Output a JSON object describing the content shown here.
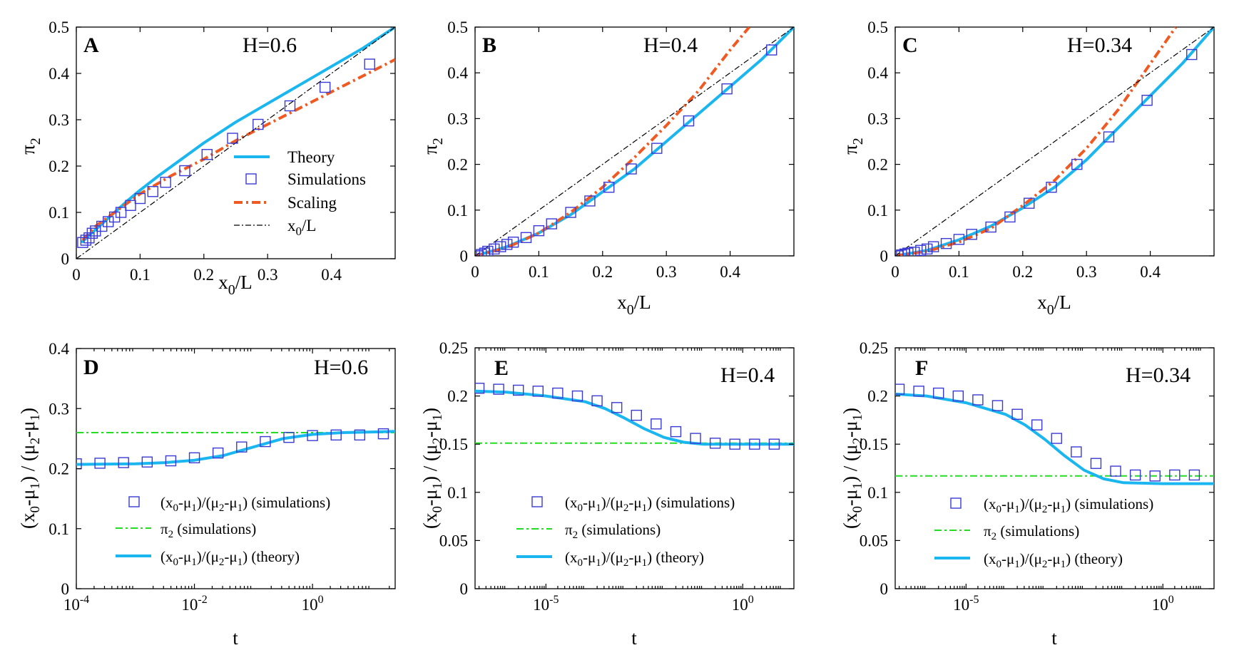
{
  "colors": {
    "theory": "#1ab6f0",
    "simulations": "#3a3ad6",
    "scaling": "#f05a22",
    "diagonal": "#000000",
    "pi2_line": "#22dd22"
  },
  "chart_data": [
    {
      "panel": "A",
      "type": "line",
      "annotation": "H=0.6",
      "xlabel": "x_0/L",
      "ylabel": "π_2",
      "xlim": [
        0,
        0.5
      ],
      "ylim": [
        0,
        0.5
      ],
      "xscale": "linear",
      "xticks": [
        0,
        0.1,
        0.2,
        0.3,
        0.4
      ],
      "xticklabels": [
        "0",
        "0.1",
        "0.2",
        "0.3",
        "0.4"
      ],
      "yticks": [
        0,
        0.1,
        0.2,
        0.3,
        0.4,
        0.5
      ],
      "yticklabels": [
        "0",
        "0.1",
        "0.2",
        "0.3",
        "0.4",
        "0.5"
      ],
      "legend": [
        "Theory",
        "Simulations",
        "Scaling",
        "x_0/L"
      ],
      "series": [
        {
          "name": "Theory",
          "style": "solid",
          "x": [
            0.008,
            0.02,
            0.04,
            0.06,
            0.08,
            0.1,
            0.13,
            0.16,
            0.2,
            0.25,
            0.3,
            0.35,
            0.4,
            0.45,
            0.5
          ],
          "y": [
            0.035,
            0.05,
            0.075,
            0.1,
            0.125,
            0.148,
            0.18,
            0.21,
            0.25,
            0.295,
            0.335,
            0.375,
            0.415,
            0.455,
            0.5
          ]
        },
        {
          "name": "Simulations",
          "style": "markers",
          "x": [
            0.01,
            0.015,
            0.02,
            0.025,
            0.03,
            0.04,
            0.05,
            0.06,
            0.07,
            0.085,
            0.1,
            0.12,
            0.14,
            0.17,
            0.205,
            0.245,
            0.285,
            0.335,
            0.39,
            0.46
          ],
          "y": [
            0.035,
            0.04,
            0.045,
            0.055,
            0.06,
            0.07,
            0.08,
            0.09,
            0.1,
            0.115,
            0.13,
            0.145,
            0.165,
            0.19,
            0.225,
            0.26,
            0.29,
            0.33,
            0.37,
            0.42
          ]
        },
        {
          "name": "Scaling",
          "style": "dashdot",
          "x": [
            0.01,
            0.03,
            0.06,
            0.1,
            0.15,
            0.2,
            0.25,
            0.3,
            0.35,
            0.4,
            0.45,
            0.5
          ],
          "y": [
            0.04,
            0.07,
            0.1,
            0.14,
            0.18,
            0.215,
            0.255,
            0.29,
            0.325,
            0.36,
            0.395,
            0.43
          ]
        },
        {
          "name": "x_0/L",
          "style": "thin-dashdot",
          "x": [
            0,
            0.5
          ],
          "y": [
            0,
            0.5
          ]
        }
      ]
    },
    {
      "panel": "B",
      "type": "line",
      "annotation": "H=0.4",
      "xlabel": "x_0/L",
      "ylabel": "π_2",
      "xlim": [
        0,
        0.5
      ],
      "ylim": [
        0,
        0.5
      ],
      "xscale": "linear",
      "xticks": [
        0,
        0.1,
        0.2,
        0.3,
        0.4
      ],
      "xticklabels": [
        "0",
        "0.1",
        "0.2",
        "0.3",
        "0.4"
      ],
      "yticks": [
        0,
        0.1,
        0.2,
        0.3,
        0.4,
        0.5
      ],
      "yticklabels": [
        "0",
        "0.1",
        "0.2",
        "0.3",
        "0.4",
        "0.5"
      ],
      "series": [
        {
          "name": "Theory",
          "style": "solid",
          "x": [
            0,
            0.05,
            0.1,
            0.15,
            0.2,
            0.25,
            0.3,
            0.35,
            0.4,
            0.45,
            0.5
          ],
          "y": [
            0,
            0.02,
            0.05,
            0.09,
            0.14,
            0.19,
            0.25,
            0.31,
            0.37,
            0.43,
            0.5
          ]
        },
        {
          "name": "Simulations",
          "style": "markers",
          "x": [
            0.005,
            0.01,
            0.015,
            0.02,
            0.03,
            0.04,
            0.05,
            0.06,
            0.08,
            0.1,
            0.12,
            0.15,
            0.18,
            0.21,
            0.245,
            0.285,
            0.335,
            0.395,
            0.465
          ],
          "y": [
            0,
            0.003,
            0.006,
            0.01,
            0.015,
            0.02,
            0.025,
            0.03,
            0.04,
            0.055,
            0.07,
            0.095,
            0.12,
            0.15,
            0.19,
            0.235,
            0.295,
            0.365,
            0.45
          ]
        },
        {
          "name": "Scaling",
          "style": "dashdot",
          "x": [
            0,
            0.05,
            0.1,
            0.15,
            0.2,
            0.25,
            0.3,
            0.35,
            0.4,
            0.43
          ],
          "y": [
            0,
            0.018,
            0.05,
            0.095,
            0.15,
            0.215,
            0.285,
            0.36,
            0.45,
            0.5
          ]
        },
        {
          "name": "x_0/L",
          "style": "thin-dashdot",
          "x": [
            0,
            0.5
          ],
          "y": [
            0,
            0.5
          ]
        }
      ]
    },
    {
      "panel": "C",
      "type": "line",
      "annotation": "H=0.34",
      "xlabel": "x_0/L",
      "ylabel": "π_2",
      "xlim": [
        0,
        0.5
      ],
      "ylim": [
        0,
        0.5
      ],
      "xscale": "linear",
      "xticks": [
        0,
        0.1,
        0.2,
        0.3,
        0.4
      ],
      "xticklabels": [
        "0",
        "0.1",
        "0.2",
        "0.3",
        "0.4"
      ],
      "yticks": [
        0,
        0.1,
        0.2,
        0.3,
        0.4,
        0.5
      ],
      "yticklabels": [
        "0",
        "0.1",
        "0.2",
        "0.3",
        "0.4",
        "0.5"
      ],
      "series": [
        {
          "name": "Theory",
          "style": "solid",
          "x": [
            0,
            0.05,
            0.1,
            0.15,
            0.2,
            0.25,
            0.3,
            0.35,
            0.4,
            0.45,
            0.5
          ],
          "y": [
            0,
            0.012,
            0.035,
            0.065,
            0.105,
            0.15,
            0.21,
            0.28,
            0.35,
            0.42,
            0.5
          ]
        },
        {
          "name": "Simulations",
          "style": "markers",
          "x": [
            0.005,
            0.01,
            0.015,
            0.02,
            0.03,
            0.04,
            0.05,
            0.06,
            0.08,
            0.1,
            0.12,
            0.15,
            0.18,
            0.21,
            0.245,
            0.285,
            0.335,
            0.395,
            0.465
          ],
          "y": [
            0,
            0.002,
            0.004,
            0.006,
            0.008,
            0.012,
            0.015,
            0.02,
            0.027,
            0.036,
            0.047,
            0.063,
            0.085,
            0.115,
            0.15,
            0.2,
            0.26,
            0.34,
            0.44
          ]
        },
        {
          "name": "Scaling",
          "style": "dashdot",
          "x": [
            0,
            0.05,
            0.1,
            0.15,
            0.2,
            0.25,
            0.3,
            0.35,
            0.4,
            0.44
          ],
          "y": [
            0,
            0.01,
            0.03,
            0.06,
            0.11,
            0.165,
            0.235,
            0.32,
            0.42,
            0.5
          ]
        },
        {
          "name": "x_0/L",
          "style": "thin-dashdot",
          "x": [
            0,
            0.5
          ],
          "y": [
            0,
            0.5
          ]
        }
      ]
    },
    {
      "panel": "D",
      "type": "line",
      "annotation": "H=0.6",
      "xlabel": "t",
      "ylabel": "(x_0-μ_1) / (μ_2-μ_1)",
      "xlim": [
        -4,
        1.4
      ],
      "ylim": [
        0,
        0.4
      ],
      "xscale": "log10",
      "xticks": [
        -4,
        -2,
        0
      ],
      "xticklabels": [
        "10^-4",
        "10^-2",
        "10^0"
      ],
      "yticks": [
        0,
        0.1,
        0.2,
        0.3,
        0.4
      ],
      "yticklabels": [
        "0",
        "0.1",
        "0.2",
        "0.3",
        "0.4"
      ],
      "legend": [
        "(x_0-μ_1)/(μ_2-μ_1) (simulations)",
        "π_2 (simulations)",
        "(x_0-μ_1)/(μ_2-μ_1) (theory)"
      ],
      "series": [
        {
          "name": "(x0-μ1)/(μ2-μ1) (simulations)",
          "style": "markers",
          "log10_t": [
            -4,
            -3.6,
            -3.2,
            -2.8,
            -2.4,
            -2.0,
            -1.6,
            -1.2,
            -0.8,
            -0.4,
            0,
            0.4,
            0.8,
            1.2
          ],
          "y": [
            0.208,
            0.209,
            0.21,
            0.211,
            0.213,
            0.218,
            0.226,
            0.236,
            0.245,
            0.252,
            0.255,
            0.256,
            0.256,
            0.258
          ]
        },
        {
          "name": "π_2 (simulations)",
          "style": "dashdot",
          "log10_t": [
            -4,
            1.4
          ],
          "y": [
            0.26,
            0.26
          ]
        },
        {
          "name": "(x0-μ1)/(μ2-μ1) (theory)",
          "style": "solid",
          "log10_t": [
            -4,
            -3,
            -2.5,
            -2,
            -1.5,
            -1,
            -0.5,
            0,
            0.5,
            1,
            1.4
          ],
          "y": [
            0.207,
            0.208,
            0.21,
            0.214,
            0.222,
            0.236,
            0.25,
            0.257,
            0.26,
            0.261,
            0.262
          ]
        }
      ]
    },
    {
      "panel": "E",
      "type": "line",
      "annotation": "H=0.4",
      "xlabel": "t",
      "ylabel": "(x_0-μ_1) / (μ_2-μ_1)",
      "xlim": [
        -6.8,
        1.3
      ],
      "ylim": [
        0,
        0.25
      ],
      "xscale": "log10",
      "xticks": [
        -5,
        0
      ],
      "xticklabels": [
        "10^-5",
        "10^0"
      ],
      "yticks": [
        0,
        0.05,
        0.1,
        0.15,
        0.2,
        0.25
      ],
      "yticklabels": [
        "0",
        "0.05",
        "0.1",
        "0.15",
        "0.2",
        "0.25"
      ],
      "legend": [
        "(x_0-μ_1)/(μ_2-μ_1) (simulations)",
        "π_2 (simulations)",
        "(x_0-μ_1)/(μ_2-μ_1) (theory)"
      ],
      "series": [
        {
          "name": "(x0-μ1)/(μ2-μ1) (simulations)",
          "style": "markers",
          "log10_t": [
            -6.7,
            -6.2,
            -5.7,
            -5.2,
            -4.7,
            -4.2,
            -3.7,
            -3.2,
            -2.7,
            -2.2,
            -1.7,
            -1.2,
            -0.7,
            -0.2,
            0.3,
            0.8
          ],
          "y": [
            0.208,
            0.207,
            0.206,
            0.205,
            0.203,
            0.2,
            0.195,
            0.188,
            0.18,
            0.171,
            0.163,
            0.156,
            0.151,
            0.15,
            0.15,
            0.15
          ]
        },
        {
          "name": "π_2 (simulations)",
          "style": "dashdot",
          "log10_t": [
            -6.8,
            1.3
          ],
          "y": [
            0.151,
            0.151
          ]
        },
        {
          "name": "(x0-μ1)/(μ2-μ1) (theory)",
          "style": "solid",
          "log10_t": [
            -6.8,
            -6,
            -5,
            -4,
            -3.5,
            -3,
            -2.5,
            -2,
            -1.5,
            -1,
            0,
            1.3
          ],
          "y": [
            0.205,
            0.204,
            0.2,
            0.194,
            0.187,
            0.177,
            0.166,
            0.157,
            0.152,
            0.15,
            0.15,
            0.15
          ]
        }
      ]
    },
    {
      "panel": "F",
      "type": "line",
      "annotation": "H=0.34",
      "xlabel": "t",
      "ylabel": "(x_0-μ_1) / (μ_2-μ_1)",
      "xlim": [
        -6.8,
        1.3
      ],
      "ylim": [
        0,
        0.25
      ],
      "xscale": "log10",
      "xticks": [
        -5,
        0
      ],
      "xticklabels": [
        "10^-5",
        "10^0"
      ],
      "yticks": [
        0,
        0.05,
        0.1,
        0.15,
        0.2,
        0.25
      ],
      "yticklabels": [
        "0",
        "0.05",
        "0.1",
        "0.15",
        "0.2",
        "0.25"
      ],
      "legend": [
        "(x_0-μ_1)/(μ_2-μ_1) (simulations)",
        "π_2 (simulations)",
        "(x_0-μ_1)/(μ_2-μ_1) (theory)"
      ],
      "series": [
        {
          "name": "(x0-μ1)/(μ2-μ1) (simulations)",
          "style": "markers",
          "log10_t": [
            -6.7,
            -6.2,
            -5.7,
            -5.2,
            -4.7,
            -4.2,
            -3.7,
            -3.2,
            -2.7,
            -2.2,
            -1.7,
            -1.2,
            -0.7,
            -0.2,
            0.3,
            0.8
          ],
          "y": [
            0.207,
            0.205,
            0.203,
            0.2,
            0.196,
            0.19,
            0.181,
            0.17,
            0.156,
            0.142,
            0.13,
            0.122,
            0.118,
            0.117,
            0.118,
            0.118
          ]
        },
        {
          "name": "π_2 (simulations)",
          "style": "dashdot",
          "log10_t": [
            -6.8,
            1.3
          ],
          "y": [
            0.117,
            0.117
          ]
        },
        {
          "name": "(x0-μ1)/(μ2-μ1) (theory)",
          "style": "solid",
          "log10_t": [
            -6.8,
            -6,
            -5,
            -4,
            -3.5,
            -3,
            -2.5,
            -2,
            -1.5,
            -1,
            0,
            1.3
          ],
          "y": [
            0.202,
            0.2,
            0.193,
            0.181,
            0.17,
            0.155,
            0.138,
            0.123,
            0.114,
            0.11,
            0.109,
            0.109
          ]
        }
      ]
    }
  ]
}
